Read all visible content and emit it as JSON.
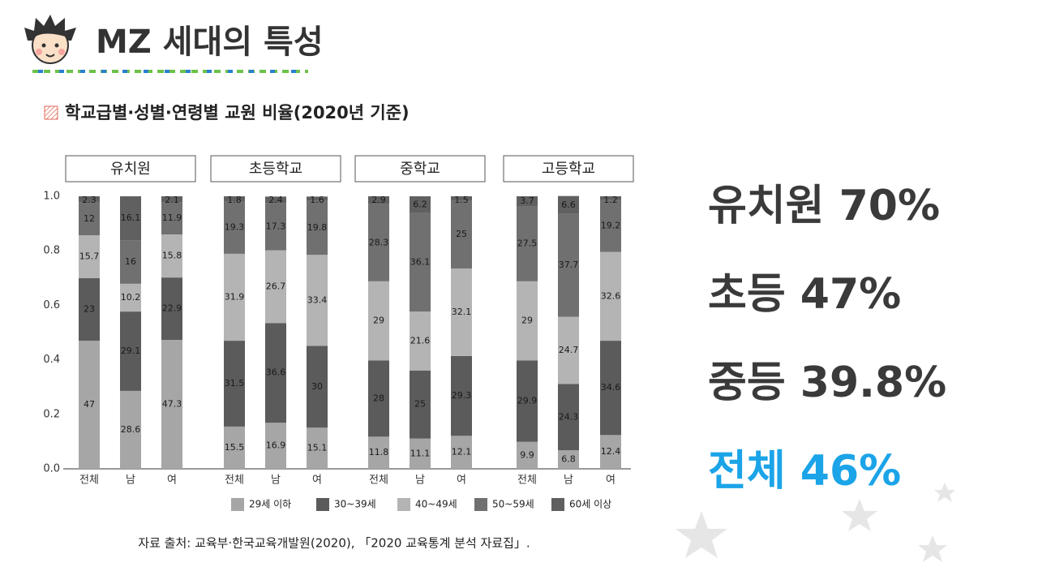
{
  "header": {
    "title": "MZ 세대의 특성"
  },
  "chart_data": {
    "type": "stacked_bar",
    "title": "학교급별·성별·연령별 교원 비율(2020년 기준)",
    "groups": [
      "유치원",
      "초등학교",
      "중학교",
      "고등학교"
    ],
    "categories": [
      "전체",
      "남",
      "여",
      "전체",
      "남",
      "여",
      "전체",
      "남",
      "여",
      "전체",
      "남",
      "여"
    ],
    "series": [
      {
        "name": "29세 이하",
        "color": "#a6a6a6",
        "values": [
          0.47,
          0.286,
          0.473,
          0.155,
          0.169,
          0.151,
          0.118,
          0.111,
          0.121,
          0.099,
          0.068,
          0.124
        ],
        "value_labels": [
          "47",
          "28.6",
          "47.3",
          "15.5",
          "16.9",
          "15.1",
          "11.8",
          "11.1",
          "12.1",
          "9.9",
          "6.8",
          "12.4"
        ]
      },
      {
        "name": "30~39세",
        "color": "#5b5b5b",
        "values": [
          0.23,
          0.291,
          0.229,
          0.315,
          0.366,
          0.3,
          0.28,
          0.25,
          0.293,
          0.299,
          0.243,
          0.346
        ],
        "value_labels": [
          "23",
          "29.1",
          "22.9",
          "31.5",
          "36.6",
          "30",
          "28",
          "25",
          "29.3",
          "29.9",
          "24.3",
          "34.6"
        ]
      },
      {
        "name": "40~49세",
        "color": "#b4b4b4",
        "values": [
          0.157,
          0.102,
          0.158,
          0.319,
          0.267,
          0.334,
          0.29,
          0.216,
          0.321,
          0.29,
          0.247,
          0.326
        ],
        "value_labels": [
          "15.7",
          "10.2",
          "15.8",
          "31.9",
          "26.7",
          "33.4",
          "29",
          "21.6",
          "32.1",
          "29",
          "24.7",
          "32.6"
        ]
      },
      {
        "name": "50~59세",
        "color": "#707070",
        "values": [
          0.12,
          0.16,
          0.119,
          0.193,
          0.173,
          0.198,
          0.283,
          0.361,
          0.25,
          0.275,
          0.377,
          0.192
        ],
        "value_labels": [
          "12",
          "16",
          "11.9",
          "19.3",
          "17.3",
          "19.8",
          "28.3",
          "36.1",
          "25",
          "27.5",
          "37.7",
          "19.2"
        ]
      },
      {
        "name": "60세 이상",
        "color": "#606060",
        "values": [
          0.023,
          0.161,
          0.021,
          0.018,
          0.024,
          0.016,
          0.029,
          0.062,
          0.015,
          0.037,
          0.066,
          0.012
        ],
        "value_labels": [
          "2.3",
          "16.1",
          "2.1",
          "1.8",
          "2.4",
          "1.6",
          "2.9",
          "6.2",
          "1.5",
          "3.7",
          "6.6",
          "1.2"
        ]
      }
    ],
    "ylim": [
      0,
      1
    ],
    "yticks": [
      {
        "value": 0,
        "label": "0.0"
      },
      0.2,
      0.4,
      0.6,
      0.8,
      {
        "value": 1,
        "label": "1.0"
      }
    ],
    "source": "자료 출처: 교육부·한국교육개발원(2020), 「2020 교육통계 분석 자료집」."
  },
  "highlights": [
    "유치원 70%",
    "초등 47%",
    "중등 39.8%",
    "전체 46%"
  ]
}
